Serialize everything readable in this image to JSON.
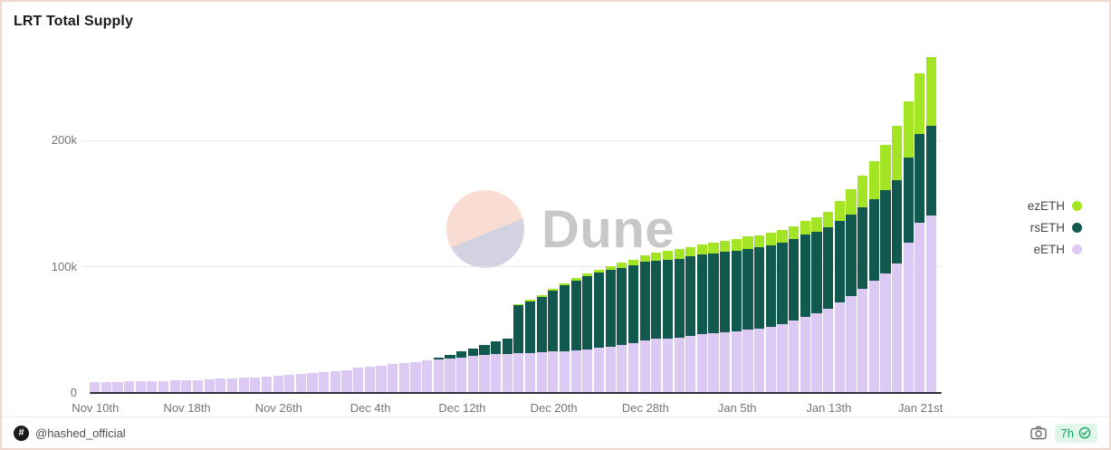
{
  "title": "LRT Total Supply",
  "watermark": {
    "brand": "Dune"
  },
  "footer": {
    "hash_symbol": "#",
    "handle": "@hashed_official",
    "badge": {
      "age": "7h"
    }
  },
  "colors": {
    "card_border": "#f2d9cf",
    "badge_bg": "#e0f6ea",
    "badge_text": "#17a05d",
    "axis_text": "#757575",
    "watermark_text": "#c8c8c8"
  },
  "chart_data": {
    "type": "bar",
    "stacked": true,
    "title": "LRT Total Supply",
    "xlabel": "",
    "ylabel": "",
    "unit": "k tokens",
    "ylim": [
      0,
      270
    ],
    "grid": "horizontal",
    "legend_position": "right",
    "legend_order": [
      "ezETH",
      "rsETH",
      "eETH"
    ],
    "y_ticks": [
      {
        "value": 0,
        "label": "0"
      },
      {
        "value": 100,
        "label": "100k"
      },
      {
        "value": 200,
        "label": "200k"
      }
    ],
    "x_tick_indices": [
      0,
      8,
      16,
      24,
      32,
      40,
      48,
      56,
      64,
      72
    ],
    "x_tick_labels": [
      "Nov 10th",
      "Nov 18th",
      "Nov 26th",
      "Dec 4th",
      "Dec 12th",
      "Dec 20th",
      "Dec 28th",
      "Jan 5th",
      "Jan 13th",
      "Jan 21st"
    ],
    "categories": [
      "Nov 10",
      "Nov 11",
      "Nov 12",
      "Nov 13",
      "Nov 14",
      "Nov 15",
      "Nov 16",
      "Nov 17",
      "Nov 18",
      "Nov 19",
      "Nov 20",
      "Nov 21",
      "Nov 22",
      "Nov 23",
      "Nov 24",
      "Nov 25",
      "Nov 26",
      "Nov 27",
      "Nov 28",
      "Nov 29",
      "Nov 30",
      "Dec 1",
      "Dec 2",
      "Dec 3",
      "Dec 4",
      "Dec 5",
      "Dec 6",
      "Dec 7",
      "Dec 8",
      "Dec 9",
      "Dec 10",
      "Dec 11",
      "Dec 12",
      "Dec 13",
      "Dec 14",
      "Dec 15",
      "Dec 16",
      "Dec 17",
      "Dec 18",
      "Dec 19",
      "Dec 20",
      "Dec 21",
      "Dec 22",
      "Dec 23",
      "Dec 24",
      "Dec 25",
      "Dec 26",
      "Dec 27",
      "Dec 28",
      "Dec 29",
      "Dec 30",
      "Dec 31",
      "Jan 1",
      "Jan 2",
      "Jan 3",
      "Jan 4",
      "Jan 5",
      "Jan 6",
      "Jan 7",
      "Jan 8",
      "Jan 9",
      "Jan 10",
      "Jan 11",
      "Jan 12",
      "Jan 13",
      "Jan 14",
      "Jan 15",
      "Jan 16",
      "Jan 17",
      "Jan 18",
      "Jan 19",
      "Jan 20",
      "Jan 21",
      "Jan 22"
    ],
    "series": [
      {
        "name": "eETH",
        "color": "#dcc9f4",
        "values": [
          8.0,
          8.1,
          8.2,
          8.3,
          8.5,
          8.6,
          8.8,
          9.0,
          9.3,
          9.6,
          10.0,
          10.4,
          10.8,
          11.2,
          11.7,
          12.2,
          12.8,
          13.4,
          14.0,
          14.7,
          15.5,
          16.3,
          17.5,
          19.0,
          20.0,
          21.0,
          22.0,
          23.0,
          24.0,
          25.0,
          25.5,
          26.5,
          27.5,
          28.5,
          29.5,
          30.0,
          30.3,
          30.5,
          31.0,
          31.5,
          32.0,
          32.5,
          33.0,
          34.0,
          35.0,
          36.0,
          37.5,
          39.0,
          41.0,
          42.0,
          42.5,
          43.0,
          44.5,
          46.0,
          46.5,
          47.5,
          48.0,
          49.5,
          50.5,
          51.5,
          54.0,
          56.5,
          59.5,
          62.5,
          66.0,
          71.0,
          76.0,
          82.0,
          88.0,
          94.0,
          102.0,
          118.0,
          134.0,
          140.0
        ]
      },
      {
        "name": "rsETH",
        "color": "#11584f",
        "values": [
          0,
          0,
          0,
          0,
          0,
          0,
          0,
          0,
          0,
          0,
          0,
          0,
          0,
          0,
          0,
          0,
          0,
          0,
          0,
          0,
          0,
          0,
          0,
          0,
          0,
          0,
          0,
          0,
          0,
          0,
          2.0,
          3.0,
          4.5,
          6.0,
          8.0,
          10.0,
          12.0,
          38.0,
          41.0,
          44.0,
          48.0,
          52.0,
          55.0,
          57.5,
          59.5,
          60.5,
          61.0,
          61.5,
          62.0,
          62.0,
          62.5,
          62.5,
          63.0,
          63.0,
          63.5,
          63.5,
          64.0,
          64.0,
          64.0,
          64.5,
          64.5,
          64.5,
          65.0,
          64.5,
          64.5,
          64.5,
          64.5,
          64.5,
          65.0,
          66.0,
          66.0,
          68.0,
          70.0,
          71.0
        ]
      },
      {
        "name": "ezETH",
        "color": "#a3e524",
        "values": [
          0,
          0,
          0,
          0,
          0,
          0,
          0,
          0,
          0,
          0,
          0,
          0,
          0,
          0,
          0,
          0,
          0,
          0,
          0,
          0,
          0,
          0,
          0,
          0,
          0,
          0,
          0,
          0,
          0,
          0,
          0,
          0,
          0,
          0,
          0,
          0,
          0,
          1.0,
          1.2,
          1.5,
          1.5,
          1.8,
          2.0,
          2.2,
          2.5,
          3.5,
          4.0,
          4.5,
          5.5,
          6.5,
          7.0,
          7.5,
          7.5,
          8.0,
          8.0,
          8.5,
          9.0,
          9.5,
          9.5,
          10.0,
          10.0,
          10.5,
          11.0,
          11.5,
          12.0,
          16.0,
          20.0,
          25.0,
          30.0,
          36.0,
          43.0,
          44.0,
          48.0,
          54.0
        ]
      }
    ]
  }
}
